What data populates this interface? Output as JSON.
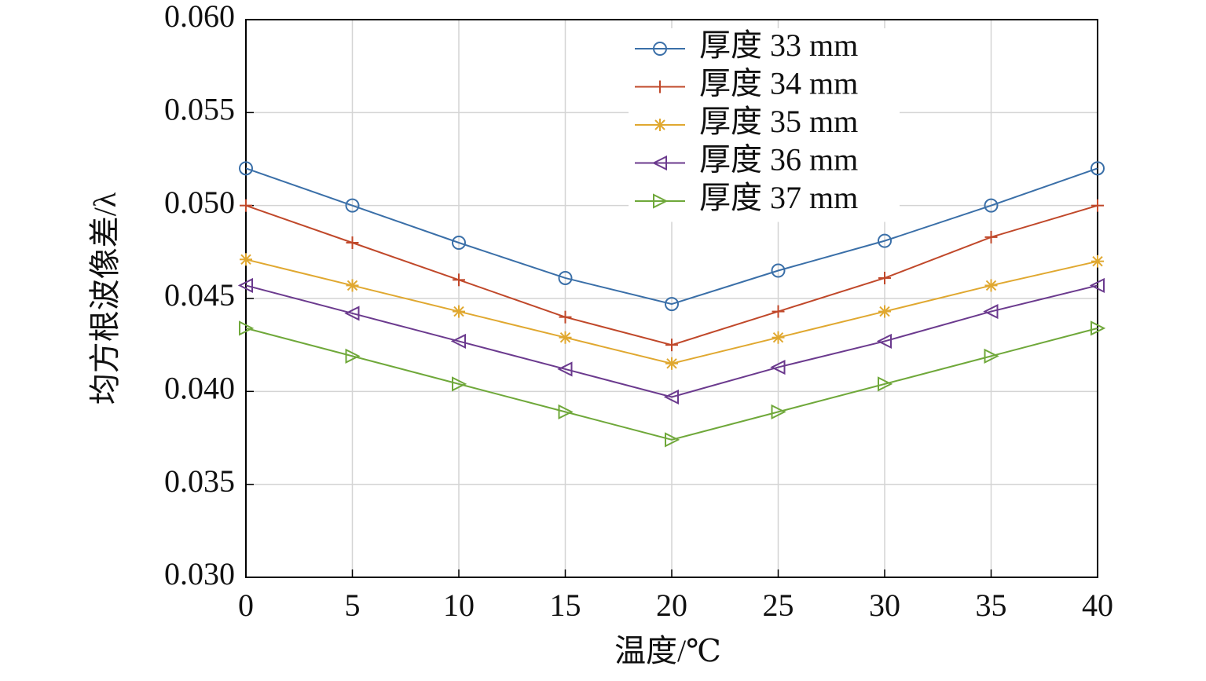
{
  "chart_data": {
    "type": "line",
    "xlabel": "温度/℃",
    "ylabel": "均方根波像差/λ",
    "x": [
      0,
      5,
      10,
      15,
      20,
      25,
      30,
      35,
      40
    ],
    "series": [
      {
        "name": "厚度 33 mm",
        "color": "#3a6fa8",
        "marker": "circle",
        "values": [
          0.052,
          0.05,
          0.048,
          0.0461,
          0.0447,
          0.0465,
          0.0481,
          0.05,
          0.052
        ]
      },
      {
        "name": "厚度 34 mm",
        "color": "#c0482a",
        "marker": "plus",
        "values": [
          0.05,
          0.048,
          0.046,
          0.044,
          0.0425,
          0.0443,
          0.0461,
          0.0483,
          0.05
        ]
      },
      {
        "name": "厚度 35 mm",
        "color": "#e0a830",
        "marker": "asterisk",
        "values": [
          0.0471,
          0.0457,
          0.0443,
          0.0429,
          0.0415,
          0.0429,
          0.0443,
          0.0457,
          0.047
        ]
      },
      {
        "name": "厚度 36 mm",
        "color": "#6b3a8e",
        "marker": "triangle-left",
        "values": [
          0.0457,
          0.0442,
          0.0427,
          0.0412,
          0.0397,
          0.0413,
          0.0427,
          0.0443,
          0.0457
        ]
      },
      {
        "name": "厚度 37 mm",
        "color": "#6fa83a",
        "marker": "triangle-right",
        "values": [
          0.0434,
          0.0419,
          0.0404,
          0.0389,
          0.0374,
          0.0389,
          0.0404,
          0.0419,
          0.0434
        ]
      }
    ],
    "xlim": [
      0,
      40
    ],
    "xticks": [
      0,
      5,
      10,
      15,
      20,
      25,
      30,
      35,
      40
    ],
    "ylim": [
      0.03,
      0.06
    ],
    "yticks": [
      {
        "value": 0.03,
        "label": "0.030"
      },
      {
        "value": 0.035,
        "label": "0.035"
      },
      {
        "value": 0.04,
        "label": "0.040"
      },
      {
        "value": 0.045,
        "label": "0.045"
      },
      {
        "value": 0.05,
        "label": "0.050"
      },
      {
        "value": 0.055,
        "label": "0.055"
      },
      {
        "value": 0.06,
        "label": "0.060"
      }
    ],
    "grid": true,
    "legend": "upper right"
  }
}
